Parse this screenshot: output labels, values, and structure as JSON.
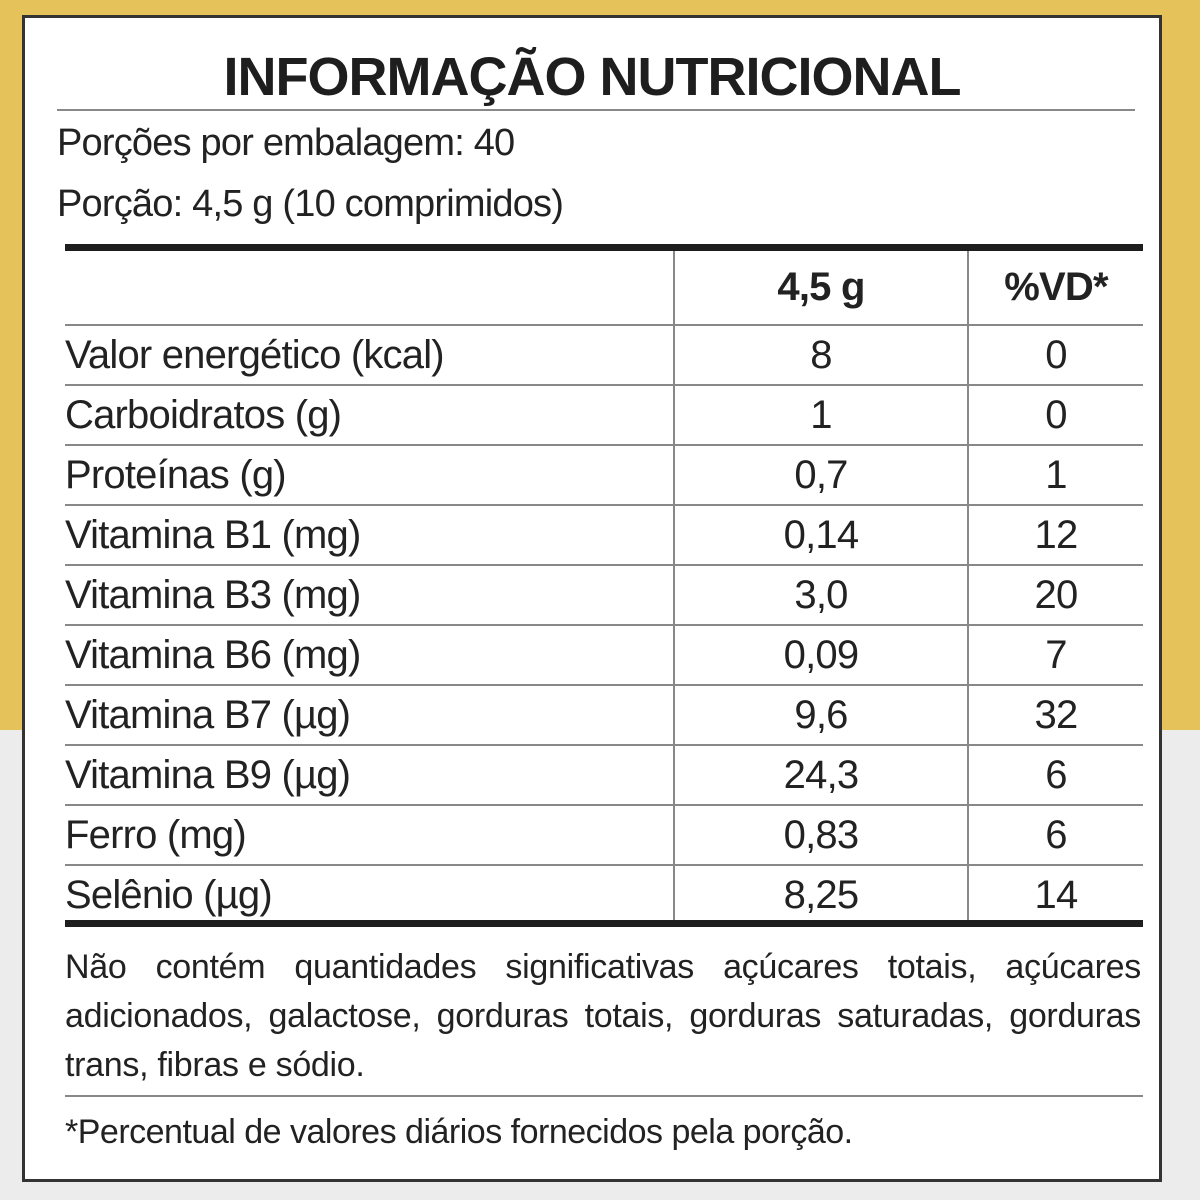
{
  "title": "INFORMAÇÃO NUTRICIONAL",
  "servings_per_package": "Porções por embalagem: 40",
  "serving_size": "Porção: 4,5 g (10 comprimidos)",
  "table": {
    "header": [
      "4,5 g",
      "%VD*"
    ],
    "rows": [
      [
        "Valor energético (kcal)",
        "8",
        "0"
      ],
      [
        "Carboidratos (g)",
        "1",
        "0"
      ],
      [
        "Proteínas (g)",
        "0,7",
        "1"
      ],
      [
        "Vitamina B1 (mg)",
        "0,14",
        "12"
      ],
      [
        "Vitamina B3 (mg)",
        "3,0",
        "20"
      ],
      [
        "Vitamina B6 (mg)",
        "0,09",
        "7"
      ],
      [
        "Vitamina B7 (µg)",
        "9,6",
        "32"
      ],
      [
        "Vitamina B9 (µg)",
        "24,3",
        "6"
      ],
      [
        "Ferro (mg)",
        "0,83",
        "6"
      ],
      [
        "Selênio (µg)",
        "8,25",
        "14"
      ]
    ]
  },
  "note": "Não contém quantidades significativas açúcares totais, açúcares adicionados, galactose, gorduras totais, gorduras saturadas, gorduras trans, fibras e sódio.",
  "footnote": "*Percentual de valores diários fornecidos pela porção."
}
